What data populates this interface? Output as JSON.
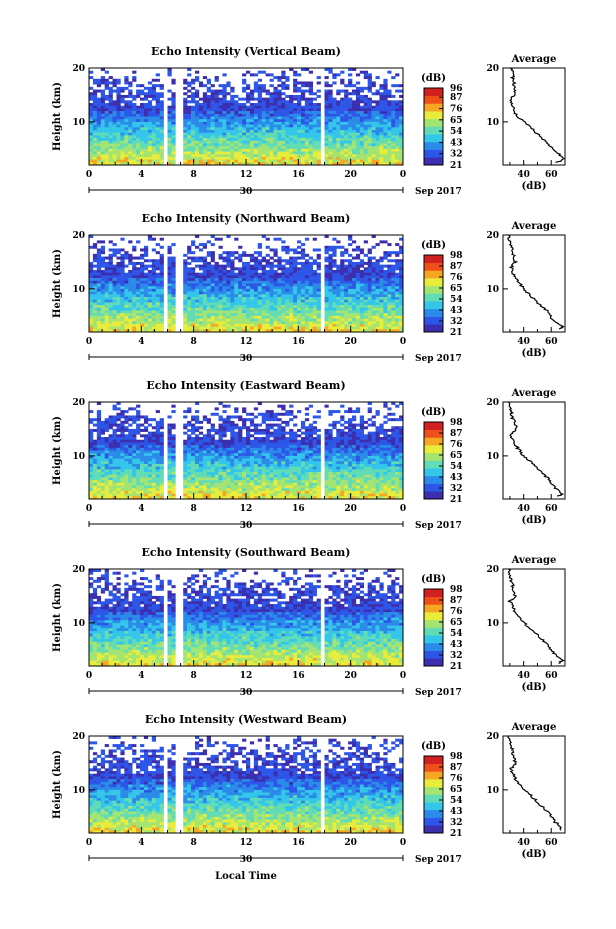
{
  "figure": {
    "xlabel": "Local Time",
    "date_label": "30",
    "month_label": "Sep 2017"
  },
  "chart_data": [
    {
      "type": "heatmap",
      "title": "Echo Intensity (Vertical Beam)",
      "ylabel": "Height (km)",
      "xlabel": "Local Time",
      "xlim": [
        0,
        24
      ],
      "ylim": [
        2,
        20
      ],
      "xticks": [
        "0",
        "4",
        "8",
        "12",
        "16",
        "20",
        "0"
      ],
      "yticks": [
        "20",
        "10"
      ],
      "colorbar": {
        "label": "(dB)",
        "ticks": [
          "96",
          "87",
          "76",
          "65",
          "54",
          "43",
          "32",
          "21"
        ],
        "range": [
          21,
          96
        ]
      },
      "data_gaps_hours": [
        [
          5.6,
          6.0
        ],
        [
          6.6,
          7.1
        ],
        [
          13.7,
          13.9
        ],
        [
          17.8,
          18.1
        ]
      ],
      "average": {
        "title": "Average",
        "xlabel": "(dB)",
        "xticks": [
          "40",
          "60"
        ],
        "yticks": [
          "20",
          "10"
        ],
        "xlim": [
          25,
          70
        ],
        "ylim": [
          2,
          20
        ],
        "height_km": [
          2.5,
          3,
          4,
          5,
          6,
          7,
          8,
          9,
          10,
          11,
          12,
          13,
          14,
          15,
          16,
          17,
          18,
          19,
          20
        ],
        "db": [
          64,
          69,
          66,
          61,
          57,
          53,
          49,
          45,
          40,
          36,
          33,
          32,
          30,
          33,
          34,
          33,
          32,
          33,
          30
        ]
      }
    },
    {
      "type": "heatmap",
      "title": "Echo Intensity (Northward Beam)",
      "ylabel": "Height (km)",
      "xlabel": "Local Time",
      "xlim": [
        0,
        24
      ],
      "ylim": [
        2,
        20
      ],
      "xticks": [
        "0",
        "4",
        "8",
        "12",
        "16",
        "20",
        "0"
      ],
      "yticks": [
        "20",
        "10"
      ],
      "colorbar": {
        "label": "(dB)",
        "ticks": [
          "98",
          "87",
          "76",
          "65",
          "54",
          "43",
          "32",
          "21"
        ],
        "range": [
          21,
          98
        ]
      },
      "data_gaps_hours": [
        [
          5.6,
          6.0
        ],
        [
          6.6,
          7.1
        ],
        [
          13.7,
          13.9
        ],
        [
          17.8,
          18.1
        ]
      ],
      "average": {
        "title": "Average",
        "xlabel": "(dB)",
        "xticks": [
          "40",
          "60"
        ],
        "yticks": [
          "20",
          "10"
        ],
        "xlim": [
          25,
          70
        ],
        "ylim": [
          2,
          20
        ],
        "height_km": [
          2.5,
          3,
          4,
          5,
          6,
          7,
          8,
          9,
          10,
          11,
          12,
          13,
          14,
          15,
          16,
          17,
          18,
          19,
          20
        ],
        "db": [
          66,
          68,
          62,
          59,
          57,
          52,
          48,
          44,
          40,
          37,
          34,
          32,
          31,
          34,
          33,
          32,
          31,
          30,
          29
        ]
      }
    },
    {
      "type": "heatmap",
      "title": "Echo Intensity (Eastward Beam)",
      "ylabel": "Height (km)",
      "xlabel": "Local Time",
      "xlim": [
        0,
        24
      ],
      "ylim": [
        2,
        20
      ],
      "xticks": [
        "0",
        "4",
        "8",
        "12",
        "16",
        "20",
        "0"
      ],
      "yticks": [
        "20",
        "10"
      ],
      "colorbar": {
        "label": "(dB)",
        "ticks": [
          "98",
          "87",
          "76",
          "65",
          "54",
          "43",
          "32",
          "21"
        ],
        "range": [
          21,
          98
        ]
      },
      "data_gaps_hours": [
        [
          5.6,
          6.0
        ],
        [
          6.6,
          7.1
        ],
        [
          13.7,
          13.9
        ],
        [
          17.8,
          18.1
        ]
      ],
      "average": {
        "title": "Average",
        "xlabel": "(dB)",
        "xticks": [
          "40",
          "60"
        ],
        "yticks": [
          "20",
          "10"
        ],
        "xlim": [
          25,
          70
        ],
        "ylim": [
          2,
          20
        ],
        "height_km": [
          2.5,
          3,
          4,
          5,
          6,
          7,
          8,
          9,
          10,
          11,
          12,
          13,
          14,
          15,
          16,
          17,
          18,
          19,
          20
        ],
        "db": [
          65,
          68,
          63,
          60,
          57,
          53,
          49,
          45,
          40,
          37,
          34,
          32,
          31,
          35,
          34,
          32,
          31,
          30,
          29
        ]
      }
    },
    {
      "type": "heatmap",
      "title": "Echo Intensity (Southward Beam)",
      "ylabel": "Height (km)",
      "xlabel": "Local Time",
      "xlim": [
        0,
        24
      ],
      "ylim": [
        2,
        20
      ],
      "xticks": [
        "0",
        "4",
        "8",
        "12",
        "16",
        "20",
        "0"
      ],
      "yticks": [
        "20",
        "10"
      ],
      "colorbar": {
        "label": "(dB)",
        "ticks": [
          "98",
          "87",
          "76",
          "65",
          "54",
          "43",
          "32",
          "21"
        ],
        "range": [
          21,
          98
        ]
      },
      "data_gaps_hours": [
        [
          5.6,
          6.0
        ],
        [
          6.6,
          7.1
        ],
        [
          13.7,
          13.9
        ],
        [
          17.8,
          18.1
        ]
      ],
      "average": {
        "title": "Average",
        "xlabel": "(dB)",
        "xticks": [
          "40",
          "60"
        ],
        "yticks": [
          "20",
          "10"
        ],
        "xlim": [
          25,
          70
        ],
        "ylim": [
          2,
          20
        ],
        "height_km": [
          2.5,
          3,
          4,
          5,
          6,
          7,
          8,
          9,
          10,
          11,
          12,
          13,
          14,
          15,
          16,
          17,
          18,
          19,
          20
        ],
        "db": [
          66,
          68,
          63,
          60,
          57,
          53,
          49,
          45,
          40,
          37,
          34,
          32,
          30,
          34,
          33,
          32,
          31,
          30,
          29
        ]
      }
    },
    {
      "type": "heatmap",
      "title": "Echo Intensity (Westward Beam)",
      "ylabel": "Height (km)",
      "xlabel": "Local Time",
      "xlim": [
        0,
        24
      ],
      "ylim": [
        2,
        20
      ],
      "xticks": [
        "0",
        "4",
        "8",
        "12",
        "16",
        "20",
        "0"
      ],
      "yticks": [
        "20",
        "10"
      ],
      "colorbar": {
        "label": "(dB)",
        "ticks": [
          "98",
          "87",
          "76",
          "65",
          "54",
          "43",
          "32",
          "21"
        ],
        "range": [
          21,
          98
        ]
      },
      "data_gaps_hours": [
        [
          5.6,
          6.0
        ],
        [
          6.6,
          7.1
        ],
        [
          13.7,
          13.9
        ],
        [
          17.8,
          18.1
        ]
      ],
      "average": {
        "title": "Average",
        "xlabel": "(dB)",
        "xticks": [
          "40",
          "60"
        ],
        "yticks": [
          "20",
          "10"
        ],
        "xlim": [
          25,
          70
        ],
        "ylim": [
          2,
          20
        ],
        "height_km": [
          2.5,
          3,
          4,
          5,
          6,
          7,
          8,
          9,
          10,
          11,
          12,
          13,
          14,
          15,
          16,
          17,
          18,
          19,
          20
        ],
        "db": [
          66,
          68,
          63,
          60,
          57,
          53,
          49,
          45,
          40,
          37,
          34,
          32,
          31,
          34,
          33,
          32,
          31,
          30,
          29
        ]
      }
    }
  ],
  "colors": {
    "colormap": [
      "#3b2fb0",
      "#2d56e8",
      "#2b8be8",
      "#33c6ea",
      "#61dcb5",
      "#a3e472",
      "#e8ec3a",
      "#f5a623",
      "#ef4f1a",
      "#d21f1f"
    ],
    "average_line": "#000000",
    "axis": "#000000"
  }
}
